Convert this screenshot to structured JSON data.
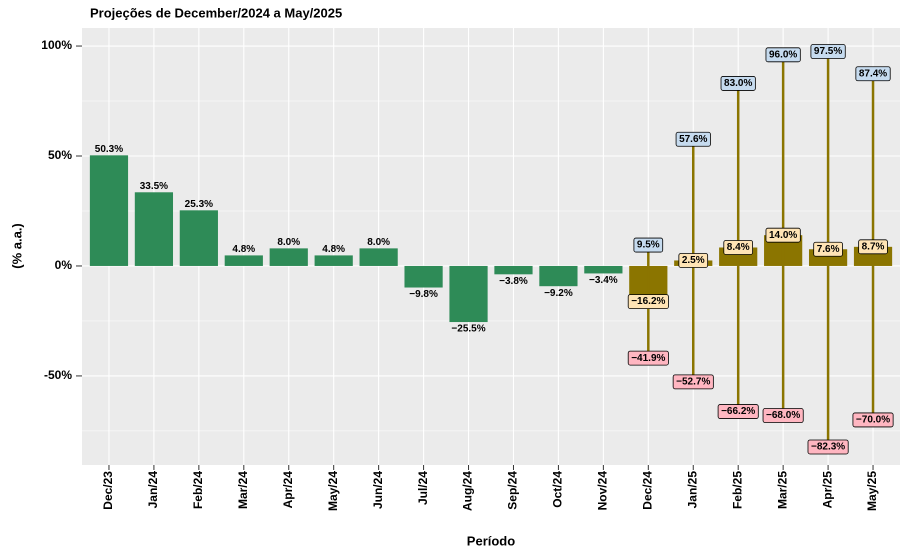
{
  "chart_data": {
    "type": "bar",
    "title": "Projeções de December/2024 a May/2025",
    "x_label": "Período",
    "y_label": "(% a.a.)",
    "categories": [
      "Dec/23",
      "Jan/24",
      "Feb/24",
      "Mar/24",
      "Apr/24",
      "May/24",
      "Jun/24",
      "Jul/24",
      "Aug/24",
      "Sep/24",
      "Oct/24",
      "Nov/24",
      "Dec/24",
      "Jan/25",
      "Feb/25",
      "Mar/25",
      "Apr/25",
      "May/25"
    ],
    "ylim": [
      -90.5,
      108.2
    ],
    "yticks": [
      {
        "value": -50,
        "label": "-50%"
      },
      {
        "value": 0,
        "label": "0%"
      },
      {
        "value": 50,
        "label": "50%"
      },
      {
        "value": 100,
        "label": "100%"
      }
    ],
    "grid": true,
    "series": [
      {
        "color": "#2e8b57",
        "values": [
          50.3,
          33.5,
          25.3,
          4.8,
          8.0,
          4.8,
          8.0,
          -9.8,
          -25.5,
          -3.8,
          -9.2,
          -3.4,
          null,
          null,
          null,
          null,
          null,
          null
        ],
        "value_labels": [
          "50.3%",
          "33.5%",
          "25.3%",
          "4.8%",
          "8.0%",
          "4.8%",
          "8.0%",
          "−9.8%",
          "−25.5%",
          "−3.8%",
          "−9.2%",
          "−3.4%",
          null,
          null,
          null,
          null,
          null,
          null
        ]
      },
      {
        "color": "#8b7500",
        "label_color": "#ffe4b5",
        "low_color": "#ffb6c1",
        "high_color": "#c6dbef",
        "values": [
          null,
          null,
          null,
          null,
          null,
          null,
          null,
          null,
          null,
          null,
          null,
          null,
          -16.2,
          2.5,
          8.4,
          14.0,
          7.6,
          8.7
        ],
        "value_labels": [
          null,
          null,
          null,
          null,
          null,
          null,
          null,
          null,
          null,
          null,
          null,
          null,
          "−16.2%",
          "2.5%",
          "8.4%",
          "14.0%",
          "7.6%",
          "8.7%"
        ],
        "low": [
          null,
          null,
          null,
          null,
          null,
          null,
          null,
          null,
          null,
          null,
          null,
          null,
          -41.9,
          -52.7,
          -66.2,
          -68.0,
          -82.3,
          -70.0
        ],
        "low_labels": [
          null,
          null,
          null,
          null,
          null,
          null,
          null,
          null,
          null,
          null,
          null,
          null,
          "−41.9%",
          "−52.7%",
          "−66.2%",
          "−68.0%",
          "−82.3%",
          "−70.0%"
        ],
        "high": [
          null,
          null,
          null,
          null,
          null,
          null,
          null,
          null,
          null,
          null,
          null,
          null,
          9.5,
          57.6,
          83.0,
          96.0,
          97.5,
          87.4
        ],
        "high_labels": [
          null,
          null,
          null,
          null,
          null,
          null,
          null,
          null,
          null,
          null,
          null,
          null,
          "9.5%",
          "57.6%",
          "83.0%",
          "96.0%",
          "97.5%",
          "87.4%"
        ]
      }
    ]
  }
}
